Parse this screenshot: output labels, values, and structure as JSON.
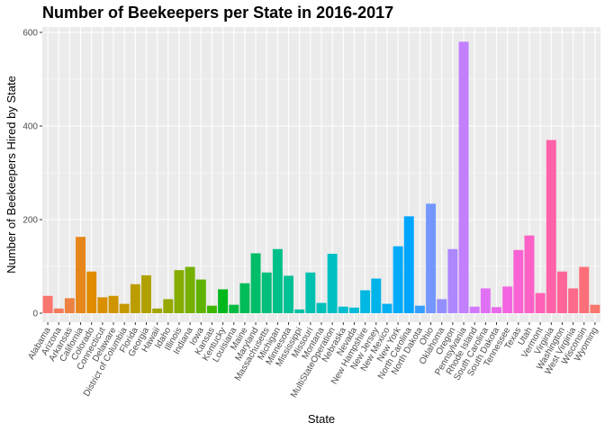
{
  "chart_data": {
    "type": "bar",
    "title": "Number of Beekeepers per State in 2016-2017",
    "xlabel": "State",
    "ylabel": "Number of Beekeepers Hired by State",
    "ylim": [
      0,
      610
    ],
    "yticks": [
      0,
      200,
      400,
      600
    ],
    "grid": true,
    "legend": "none",
    "categories": [
      "Alabama",
      "Arizona",
      "Arkansas",
      "California",
      "Colorado",
      "Connecticut",
      "Delaware",
      "District of Columbia",
      "Florida",
      "Georgia",
      "Hawaii",
      "Idaho",
      "Illinois",
      "Indiana",
      "Iowa",
      "Kansas",
      "Kentucky",
      "Louisiana",
      "Maine",
      "Maryland",
      "Massachusetts",
      "Michigan",
      "Minnesota",
      "Mississippi",
      "Missouri",
      "Montana",
      "MultiStateOperation",
      "Nebraska",
      "Nevada",
      "New Hampshire",
      "New Jersey",
      "New Mexico",
      "New York",
      "North Carolina",
      "North Dakota",
      "Ohio",
      "Oklahoma",
      "Oregon",
      "Pennsylvania",
      "Rhode Island",
      "South Carolina",
      "South Dakota",
      "Tennessee",
      "Texas",
      "Utah",
      "Vermont",
      "Virginia",
      "Washington",
      "West Virginia",
      "Wisconsin",
      "Wyoming"
    ],
    "values": [
      37,
      10,
      32,
      163,
      89,
      34,
      37,
      20,
      62,
      81,
      10,
      30,
      92,
      99,
      72,
      16,
      51,
      18,
      64,
      128,
      87,
      137,
      80,
      8,
      87,
      22,
      127,
      14,
      12,
      49,
      74,
      20,
      143,
      207,
      16,
      234,
      30,
      137,
      580,
      14,
      53,
      13,
      57,
      135,
      166,
      43,
      370,
      89,
      53,
      99,
      18
    ],
    "colors": [
      "#F8766D",
      "#F37B59",
      "#ED8141",
      "#E7861B",
      "#E08B00",
      "#D89000",
      "#CF9400",
      "#C59900",
      "#BB9D00",
      "#B0A100",
      "#A3A500",
      "#95A900",
      "#86AC00",
      "#75AF00",
      "#5EB300",
      "#3DB600",
      "#00B81B",
      "#00BA42",
      "#00BC59",
      "#00BD6A",
      "#00BF7A",
      "#00C089",
      "#00C096",
      "#00C1A3",
      "#00C1AF",
      "#00C0BA",
      "#00BFC4",
      "#00BDCF",
      "#00BBD8",
      "#00B8E1",
      "#00B4EA",
      "#00B0F2",
      "#00ABF9",
      "#00A5FF",
      "#349EFF",
      "#7397FF",
      "#948FFF",
      "#AE87FF",
      "#C27FFF",
      "#D378FE",
      "#E071F5",
      "#EB6AEB",
      "#F365E0",
      "#F962D4",
      "#FD61C6",
      "#FF61B7",
      "#FF62A8",
      "#FF6599",
      "#FE6A89",
      "#FC6F79",
      "#F8766D"
    ]
  }
}
